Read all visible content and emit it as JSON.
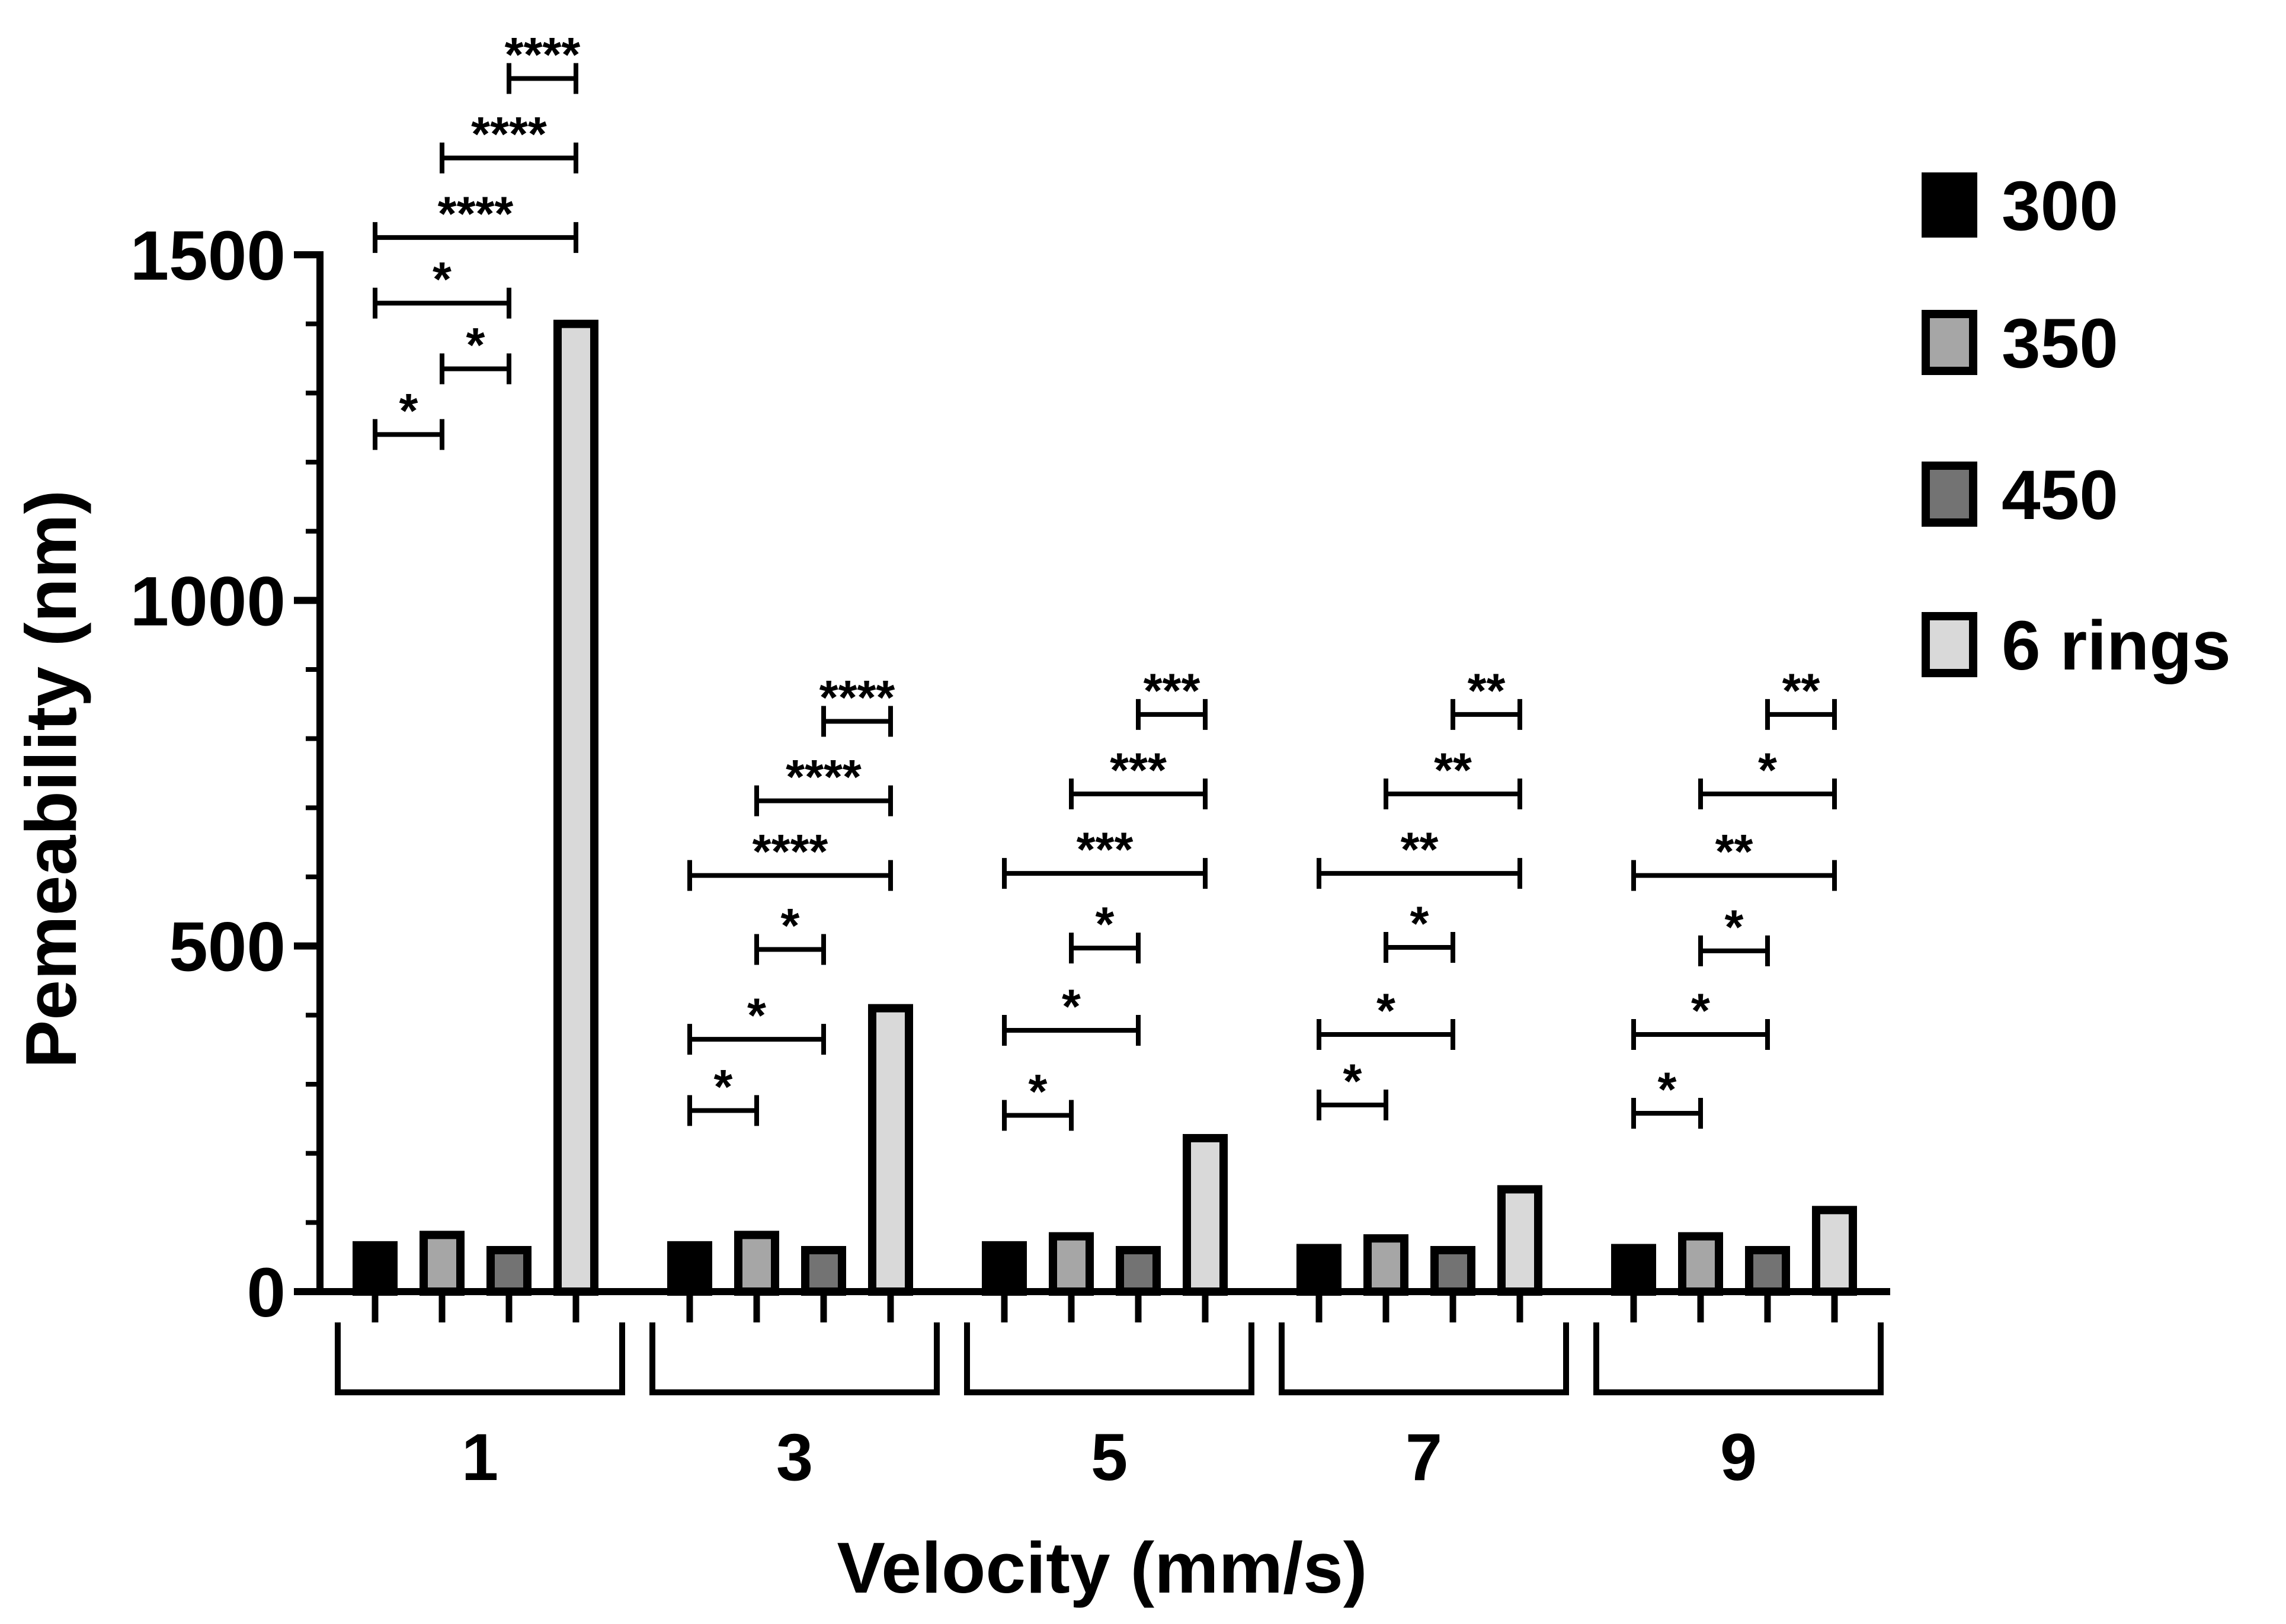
{
  "chart_data": {
    "type": "bar",
    "title": "",
    "xlabel": "Velocity (mm/s)",
    "ylabel": "Pemeability (nm)",
    "ylim": [
      0,
      1500
    ],
    "yticks": [
      "0",
      "500",
      "1000",
      "1500"
    ],
    "yticks_values": [
      0,
      500,
      1000,
      1500
    ],
    "categories": [
      "1",
      "3",
      "5",
      "7",
      "9"
    ],
    "series": [
      {
        "name": "300",
        "color": "#000000",
        "values": [
          67,
          67,
          67,
          63,
          63
        ]
      },
      {
        "name": "350",
        "color": "#a6a6a6",
        "values": [
          82,
          82,
          80,
          77,
          80
        ]
      },
      {
        "name": "450",
        "color": "#737373",
        "values": [
          60,
          60,
          60,
          60,
          60
        ]
      },
      {
        "name": "6 rings",
        "color": "#d9d9d9",
        "values": [
          1400,
          410,
          222,
          148,
          118
        ]
      }
    ],
    "legend": {
      "position": "right",
      "entries": [
        "300",
        "350",
        "450",
        "6 rings"
      ]
    },
    "significance": [
      [
        {
          "from": 0,
          "to": 1,
          "y": 1240,
          "label": "*"
        },
        {
          "from": 1,
          "to": 2,
          "y": 1335,
          "label": "*"
        },
        {
          "from": 0,
          "to": 2,
          "y": 1430,
          "label": "*"
        },
        {
          "from": 0,
          "to": 3,
          "y": 1525,
          "label": "****"
        },
        {
          "from": 1,
          "to": 3,
          "y": 1640,
          "label": "****"
        },
        {
          "from": 2,
          "to": 3,
          "y": 1755,
          "label": "****"
        }
      ],
      [
        {
          "from": 0,
          "to": 1,
          "y": 262,
          "label": "*"
        },
        {
          "from": 0,
          "to": 2,
          "y": 365,
          "label": "*"
        },
        {
          "from": 1,
          "to": 2,
          "y": 495,
          "label": "*"
        },
        {
          "from": 0,
          "to": 3,
          "y": 602,
          "label": "****"
        },
        {
          "from": 1,
          "to": 3,
          "y": 710,
          "label": "****"
        },
        {
          "from": 2,
          "to": 3,
          "y": 825,
          "label": "****"
        }
      ],
      [
        {
          "from": 0,
          "to": 1,
          "y": 255,
          "label": "*"
        },
        {
          "from": 0,
          "to": 2,
          "y": 378,
          "label": "*"
        },
        {
          "from": 1,
          "to": 2,
          "y": 497,
          "label": "*"
        },
        {
          "from": 0,
          "to": 3,
          "y": 605,
          "label": "***"
        },
        {
          "from": 1,
          "to": 3,
          "y": 720,
          "label": "***"
        },
        {
          "from": 2,
          "to": 3,
          "y": 835,
          "label": "***"
        }
      ],
      [
        {
          "from": 0,
          "to": 1,
          "y": 270,
          "label": "*"
        },
        {
          "from": 0,
          "to": 2,
          "y": 372,
          "label": "*"
        },
        {
          "from": 1,
          "to": 2,
          "y": 498,
          "label": "*"
        },
        {
          "from": 0,
          "to": 3,
          "y": 605,
          "label": "**"
        },
        {
          "from": 1,
          "to": 3,
          "y": 720,
          "label": "**"
        },
        {
          "from": 2,
          "to": 3,
          "y": 835,
          "label": "**"
        }
      ],
      [
        {
          "from": 0,
          "to": 1,
          "y": 258,
          "label": "*"
        },
        {
          "from": 0,
          "to": 2,
          "y": 372,
          "label": "*"
        },
        {
          "from": 1,
          "to": 2,
          "y": 493,
          "label": "*"
        },
        {
          "from": 0,
          "to": 3,
          "y": 602,
          "label": "**"
        },
        {
          "from": 1,
          "to": 3,
          "y": 720,
          "label": "*"
        },
        {
          "from": 2,
          "to": 3,
          "y": 835,
          "label": "**"
        }
      ]
    ]
  }
}
